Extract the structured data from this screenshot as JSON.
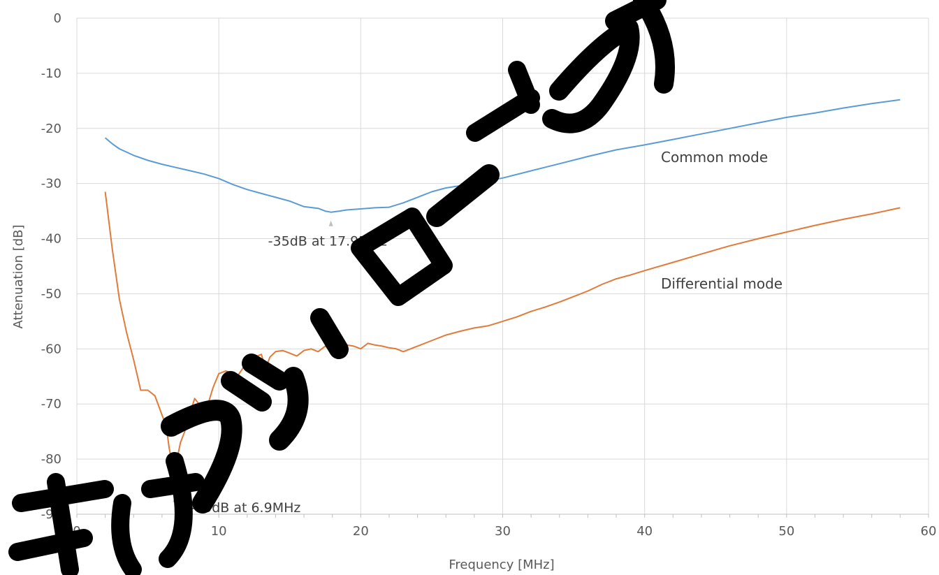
{
  "chart_data": {
    "type": "line",
    "xlabel": "Frequency [MHz]",
    "ylabel": "Attenuation [dB]",
    "xlim": [
      0,
      60
    ],
    "ylim": [
      -90,
      0
    ],
    "x_ticks": [
      "0",
      "10",
      "20",
      "30",
      "40",
      "50",
      "60"
    ],
    "y_ticks": [
      "0",
      "-10",
      "-20",
      "-30",
      "-40",
      "-50",
      "-60",
      "-70",
      "-80",
      "-90"
    ],
    "grid": true,
    "series": [
      {
        "name": "Common mode",
        "color": "#5b9bd5",
        "x": [
          2,
          2.5,
          3,
          4,
          5,
          6,
          7,
          8,
          9,
          10,
          11,
          12,
          13,
          14,
          15,
          16,
          17,
          17.5,
          17.9,
          18.5,
          19,
          20,
          21,
          22,
          23,
          24,
          25,
          26,
          28,
          30,
          32,
          34,
          36,
          38,
          40,
          42,
          44,
          46,
          48,
          50,
          52,
          54,
          56,
          58
        ],
        "values": [
          -21.7,
          -22.8,
          -23.7,
          -24.9,
          -25.8,
          -26.5,
          -27.1,
          -27.7,
          -28.3,
          -29.1,
          -30.2,
          -31.1,
          -31.8,
          -32.5,
          -33.2,
          -34.2,
          -34.5,
          -35.0,
          -35.2,
          -35.0,
          -34.8,
          -34.6,
          -34.4,
          -34.3,
          -33.5,
          -32.5,
          -31.5,
          -30.8,
          -30.0,
          -29.0,
          -27.7,
          -26.4,
          -25.1,
          -23.9,
          -23.0,
          -22.0,
          -21.0,
          -20.0,
          -19.0,
          -18.0,
          -17.2,
          -16.3,
          -15.5,
          -14.8
        ]
      },
      {
        "name": "Differential mode",
        "color": "#e07b39",
        "x": [
          2,
          2.5,
          3,
          3.5,
          4,
          4.5,
          5,
          5.5,
          6,
          6.3,
          6.5,
          6.7,
          6.9,
          7.1,
          7.3,
          7.6,
          8,
          8.3,
          8.6,
          9,
          9.3,
          9.6,
          10,
          10.5,
          11,
          11.3,
          11.7,
          12,
          12.5,
          13,
          13.3,
          13.6,
          14,
          14.5,
          15,
          15.5,
          16,
          16.5,
          17,
          17.5,
          18,
          18.5,
          19,
          19.5,
          20,
          20.5,
          21,
          21.5,
          22,
          22.5,
          23,
          24,
          25,
          26,
          27,
          28,
          29,
          30,
          31,
          32,
          33,
          34,
          35,
          36,
          37,
          38,
          39,
          40,
          42,
          44,
          46,
          48,
          50,
          52,
          54,
          56,
          58
        ],
        "values": [
          -31.5,
          -42.0,
          -51.0,
          -57.0,
          -62.0,
          -67.5,
          -67.5,
          -68.5,
          -72.0,
          -74.0,
          -78.0,
          -80.5,
          -85.3,
          -79.5,
          -77.0,
          -75.0,
          -71.5,
          -69.0,
          -70.0,
          -71.5,
          -69.5,
          -67.0,
          -64.5,
          -64.0,
          -64.5,
          -65.0,
          -63.5,
          -62.5,
          -61.5,
          -61.0,
          -63.5,
          -61.5,
          -60.5,
          -60.3,
          -60.8,
          -61.3,
          -60.3,
          -60.0,
          -60.5,
          -59.5,
          -60.5,
          -59.0,
          -59.3,
          -59.5,
          -60.0,
          -59.0,
          -59.3,
          -59.5,
          -59.8,
          -60.0,
          -60.5,
          -59.5,
          -58.5,
          -57.5,
          -56.8,
          -56.2,
          -55.8,
          -55.0,
          -54.2,
          -53.2,
          -52.4,
          -51.5,
          -50.5,
          -49.5,
          -48.3,
          -47.3,
          -46.6,
          -45.8,
          -44.3,
          -42.8,
          -41.3,
          -40.0,
          -38.8,
          -37.6,
          -36.5,
          -35.5,
          -34.4
        ]
      }
    ],
    "annotations": [
      {
        "text": "-35dB at 17.9MHz",
        "x": 17.9,
        "y": -35.2
      },
      {
        "text": "-85dB at 6.9MHz",
        "x": 6.9,
        "y": -85.3
      }
    ],
    "watermark_text": "本書はダウンロードされたもの"
  }
}
